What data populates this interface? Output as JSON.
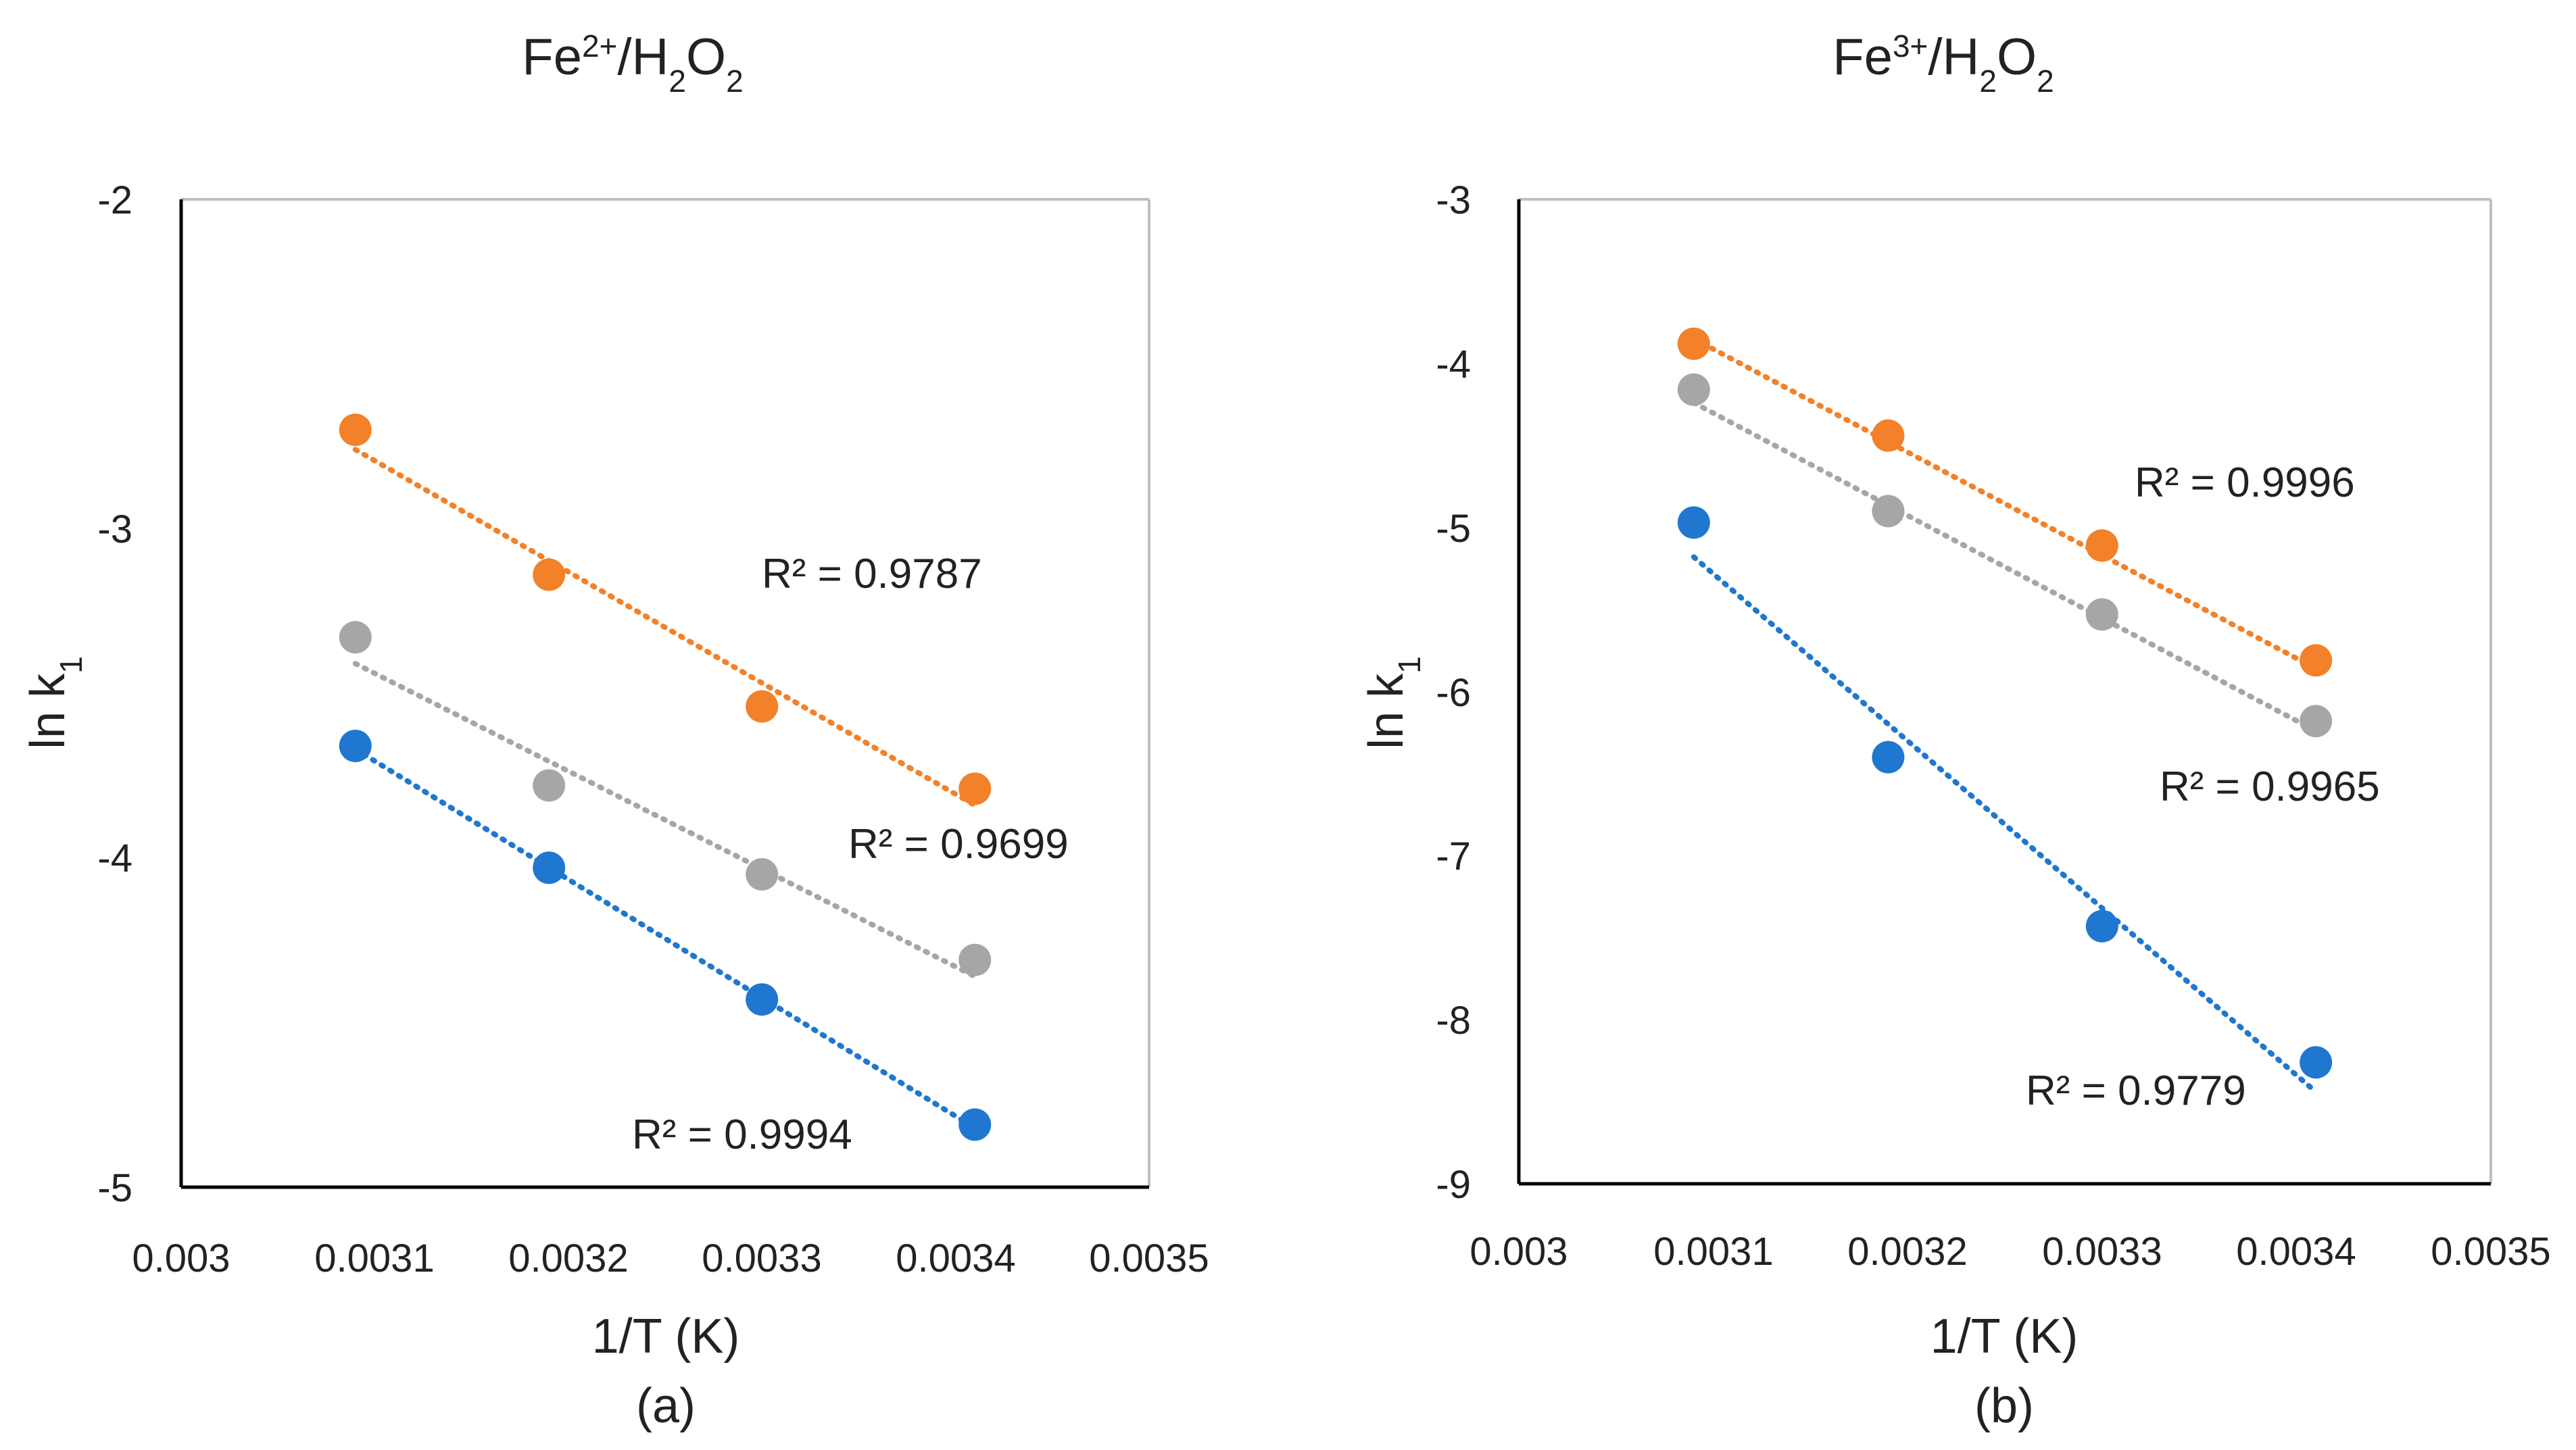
{
  "chart_data": [
    {
      "type": "scatter",
      "panel": "a",
      "title": {
        "base": "Fe",
        "sup": "2+",
        "sep": "/H",
        "sub1": "2",
        "mid": "O",
        "sub2": "2"
      },
      "xlabel": "1/T (K)",
      "ylabel": {
        "base": "ln k",
        "sub": "1"
      },
      "caption": "(a)",
      "xlim": [
        0.003,
        0.0035
      ],
      "ylim": [
        -5,
        -2
      ],
      "xticks": [
        "0.003",
        "0.0031",
        "0.0032",
        "0.0033",
        "0.0034",
        "0.0035"
      ],
      "yticks": [
        "-2",
        "-3",
        "-4",
        "-5"
      ],
      "x": [
        0.00309,
        0.00319,
        0.0033,
        0.00341
      ],
      "series": [
        {
          "name": "orange",
          "color": "#F28129",
          "values": [
            -2.7,
            -3.14,
            -3.54,
            -3.79
          ],
          "trend": [
            -2.76,
            -3.84
          ],
          "r2": "R² = 0.9787"
        },
        {
          "name": "gray",
          "color": "#A6A6A6",
          "values": [
            -3.33,
            -3.78,
            -4.05,
            -4.31
          ],
          "trend": [
            -3.41,
            -4.36
          ],
          "r2": "R² = 0.9699"
        },
        {
          "name": "blue",
          "color": "#1F77D0",
          "values": [
            -3.66,
            -4.03,
            -4.43,
            -4.81
          ],
          "trend": [
            -3.67,
            -4.82
          ],
          "r2": "R² = 0.9994"
        }
      ]
    },
    {
      "type": "scatter",
      "panel": "b",
      "title": {
        "base": "Fe",
        "sup": "3+",
        "sep": "/H",
        "sub1": "2",
        "mid": "O",
        "sub2": "2"
      },
      "xlabel": "1/T (K)",
      "ylabel": {
        "base": "ln k",
        "sub": "1"
      },
      "caption": "(b)",
      "xlim": [
        0.003,
        0.0035
      ],
      "ylim": [
        -9,
        -3
      ],
      "xticks": [
        "0.003",
        "0.0031",
        "0.0032",
        "0.0033",
        "0.0034",
        "0.0035"
      ],
      "yticks": [
        "-3",
        "-4",
        "-5",
        "-6",
        "-7",
        "-8",
        "-9"
      ],
      "x": [
        0.00309,
        0.00319,
        0.0033,
        0.00341
      ],
      "series": [
        {
          "name": "orange",
          "color": "#F28129",
          "values": [
            -3.88,
            -4.44,
            -5.11,
            -5.81
          ],
          "trend": [
            -3.85,
            -5.86
          ],
          "r2": "R² = 0.9996"
        },
        {
          "name": "gray",
          "color": "#A6A6A6",
          "values": [
            -4.16,
            -4.9,
            -5.53,
            -6.18
          ],
          "trend": [
            -4.24,
            -6.24
          ],
          "r2": "R² = 0.9965"
        },
        {
          "name": "blue",
          "color": "#1F77D0",
          "values": [
            -4.97,
            -6.4,
            -7.43,
            -8.26
          ],
          "trend": [
            -5.18,
            -8.44
          ],
          "r2": "R² = 0.9779"
        }
      ]
    }
  ]
}
